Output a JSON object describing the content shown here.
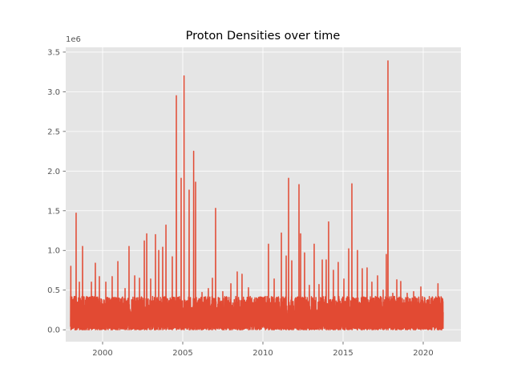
{
  "chart_data": {
    "type": "line",
    "title": "Proton Densities over time",
    "xlabel": "",
    "ylabel": "",
    "y_offset_label": "1e6",
    "xlim": [
      1997.7,
      2022.35
    ],
    "ylim": [
      -150000,
      3560000
    ],
    "x_ticks": [
      2000,
      2005,
      2010,
      2015,
      2020
    ],
    "x_tick_labels": [
      "2000",
      "2005",
      "2010",
      "2015",
      "2020"
    ],
    "y_ticks": [
      0,
      500000,
      1000000,
      1500000,
      2000000,
      2500000,
      3000000,
      3500000
    ],
    "y_tick_labels": [
      "0.0",
      "0.5",
      "1.0",
      "1.5",
      "2.0",
      "2.5",
      "3.0",
      "3.5"
    ],
    "grid": true,
    "style": "ggplot",
    "colors": {
      "line": "#e24a33",
      "background": "#e5e5e5",
      "grid": "#ffffff",
      "tick": "#555555"
    },
    "series": [
      {
        "x_start": 1998.0,
        "x_end": 2021.25,
        "peaks": [
          [
            1998.02,
            800000
          ],
          [
            1998.35,
            1470000
          ],
          [
            1998.55,
            600000
          ],
          [
            1998.75,
            1050000
          ],
          [
            1999.0,
            420000
          ],
          [
            1999.3,
            600000
          ],
          [
            1999.55,
            840000
          ],
          [
            1999.8,
            670000
          ],
          [
            2000.2,
            600000
          ],
          [
            2000.6,
            670000
          ],
          [
            2000.95,
            860000
          ],
          [
            2001.4,
            520000
          ],
          [
            2001.65,
            1050000
          ],
          [
            2002.0,
            680000
          ],
          [
            2002.3,
            650000
          ],
          [
            2002.6,
            1120000
          ],
          [
            2002.75,
            1210000
          ],
          [
            2003.0,
            640000
          ],
          [
            2003.3,
            1200000
          ],
          [
            2003.5,
            1000000
          ],
          [
            2003.75,
            1040000
          ],
          [
            2003.95,
            1320000
          ],
          [
            2004.35,
            920000
          ],
          [
            2004.6,
            2950000
          ],
          [
            2004.9,
            1910000
          ],
          [
            2005.08,
            3200000
          ],
          [
            2005.4,
            1760000
          ],
          [
            2005.68,
            2250000
          ],
          [
            2005.8,
            1860000
          ],
          [
            2006.2,
            470000
          ],
          [
            2006.6,
            520000
          ],
          [
            2006.85,
            650000
          ],
          [
            2007.05,
            1530000
          ],
          [
            2007.5,
            480000
          ],
          [
            2008.0,
            580000
          ],
          [
            2008.4,
            730000
          ],
          [
            2008.7,
            700000
          ],
          [
            2009.1,
            530000
          ],
          [
            2009.6,
            400000
          ],
          [
            2010.15,
            420000
          ],
          [
            2010.35,
            1080000
          ],
          [
            2010.7,
            640000
          ],
          [
            2011.15,
            1220000
          ],
          [
            2011.45,
            930000
          ],
          [
            2011.6,
            1910000
          ],
          [
            2011.8,
            870000
          ],
          [
            2012.25,
            1830000
          ],
          [
            2012.35,
            1210000
          ],
          [
            2012.6,
            970000
          ],
          [
            2012.9,
            560000
          ],
          [
            2013.2,
            1080000
          ],
          [
            2013.5,
            570000
          ],
          [
            2013.7,
            880000
          ],
          [
            2013.95,
            880000
          ],
          [
            2014.1,
            1360000
          ],
          [
            2014.4,
            750000
          ],
          [
            2014.7,
            850000
          ],
          [
            2015.05,
            640000
          ],
          [
            2015.35,
            1020000
          ],
          [
            2015.55,
            1840000
          ],
          [
            2015.9,
            1000000
          ],
          [
            2016.2,
            770000
          ],
          [
            2016.5,
            780000
          ],
          [
            2016.8,
            600000
          ],
          [
            2017.15,
            680000
          ],
          [
            2017.5,
            500000
          ],
          [
            2017.7,
            950000
          ],
          [
            2017.8,
            3390000
          ],
          [
            2018.1,
            460000
          ],
          [
            2018.35,
            630000
          ],
          [
            2018.6,
            610000
          ],
          [
            2019.0,
            460000
          ],
          [
            2019.4,
            480000
          ],
          [
            2019.85,
            540000
          ],
          [
            2020.3,
            310000
          ],
          [
            2020.7,
            350000
          ],
          [
            2020.92,
            580000
          ],
          [
            2021.15,
            400000
          ]
        ]
      }
    ]
  }
}
